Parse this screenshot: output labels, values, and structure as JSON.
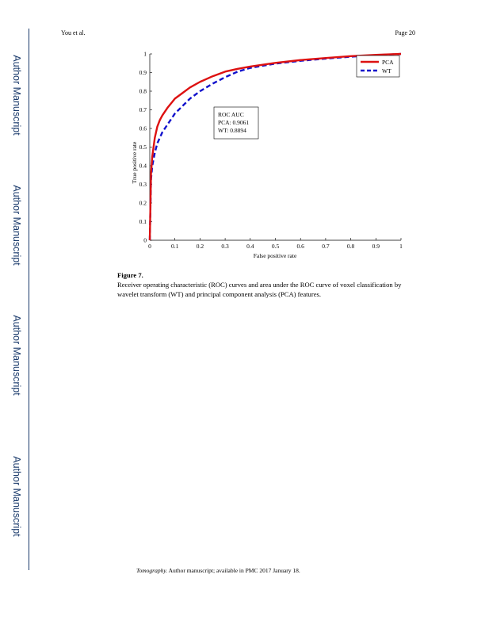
{
  "header": {
    "author": "You et al.",
    "page": "Page 20"
  },
  "sidebar": {
    "labels": [
      "Author Manuscript",
      "Author Manuscript",
      "Author Manuscript",
      "Author Manuscript"
    ]
  },
  "figure": {
    "label": "Figure 7.",
    "caption": "Receiver operating characteristic (ROC) curves and area under the ROC curve of voxel classification by wavelet transform (WT) and principal component analysis (PCA) features."
  },
  "footer": {
    "journal": "Tomography.",
    "text": " Author manuscript; available in PMC 2017 January 18."
  },
  "colors": {
    "pca": "#dd1111",
    "wt": "#1111cc"
  },
  "chart_data": {
    "type": "line",
    "xlabel": "False positive rate",
    "ylabel": "True positive rate",
    "xlim": [
      0,
      1
    ],
    "ylim": [
      0,
      1
    ],
    "xticks": [
      "0",
      "0.1",
      "0.2",
      "0.3",
      "0.4",
      "0.5",
      "0.6",
      "0.7",
      "0.8",
      "0.9",
      "1"
    ],
    "yticks": [
      "0",
      "0.1",
      "0.2",
      "0.3",
      "0.4",
      "0.5",
      "0.6",
      "0.7",
      "0.8",
      "0.9",
      "1"
    ],
    "legend_position": "top-right",
    "annotation": [
      "ROC AUC",
      "PCA: 0.9061",
      "WT: 0.8894"
    ],
    "series": [
      {
        "name": "PCA",
        "style": "solid",
        "x": [
          0,
          0.005,
          0.01,
          0.02,
          0.03,
          0.04,
          0.05,
          0.07,
          0.1,
          0.13,
          0.16,
          0.2,
          0.25,
          0.3,
          0.35,
          0.4,
          0.5,
          0.6,
          0.7,
          0.8,
          0.9,
          1.0
        ],
        "y": [
          0,
          0.36,
          0.45,
          0.55,
          0.61,
          0.645,
          0.67,
          0.71,
          0.76,
          0.79,
          0.82,
          0.85,
          0.88,
          0.905,
          0.92,
          0.932,
          0.952,
          0.967,
          0.978,
          0.988,
          0.995,
          1.0
        ]
      },
      {
        "name": "WT",
        "style": "dashed",
        "x": [
          0,
          0.005,
          0.01,
          0.02,
          0.03,
          0.04,
          0.05,
          0.07,
          0.1,
          0.13,
          0.16,
          0.2,
          0.25,
          0.3,
          0.35,
          0.4,
          0.5,
          0.6,
          0.7,
          0.8,
          0.9,
          1.0
        ],
        "y": [
          0,
          0.33,
          0.4,
          0.47,
          0.52,
          0.55,
          0.58,
          0.62,
          0.68,
          0.72,
          0.76,
          0.8,
          0.84,
          0.875,
          0.905,
          0.925,
          0.948,
          0.963,
          0.975,
          0.985,
          0.993,
          1.0
        ]
      }
    ]
  }
}
